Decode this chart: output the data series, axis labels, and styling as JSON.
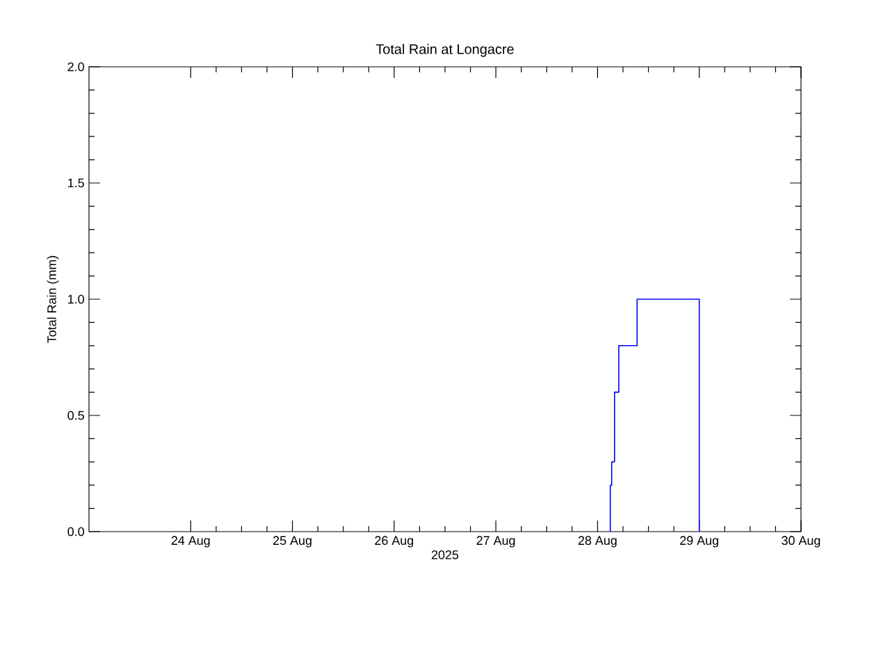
{
  "chart_data": {
    "type": "step",
    "title": "Total Rain at Longacre",
    "xlabel": "2025",
    "ylabel": "Total Rain (mm)",
    "x": [
      "2025-08-28T03:00",
      "2025-08-28T03:00",
      "2025-08-28T03:20",
      "2025-08-28T04:00",
      "2025-08-28T05:00",
      "2025-08-28T09:20",
      "2025-08-29T00:00"
    ],
    "series": [
      {
        "color": "#0000ff",
        "values": [
          0,
          0.2,
          0.3,
          0.6,
          0.8,
          1.0,
          0
        ]
      }
    ],
    "xlim": [
      "2025-08-23",
      "2025-08-30"
    ],
    "xticks": [
      {
        "value": "2025-08-24",
        "label": "24 Aug"
      },
      {
        "value": "2025-08-25",
        "label": "25 Aug"
      },
      {
        "value": "2025-08-26",
        "label": "26 Aug"
      },
      {
        "value": "2025-08-27",
        "label": "27 Aug"
      },
      {
        "value": "2025-08-28",
        "label": "28 Aug"
      },
      {
        "value": "2025-08-29",
        "label": "29 Aug"
      },
      {
        "value": "2025-08-30",
        "label": "30 Aug"
      }
    ],
    "ylim": [
      0,
      2
    ],
    "yticks": [
      {
        "value": 0,
        "label": "0.0"
      },
      {
        "value": 0.5,
        "label": "0.5"
      },
      {
        "value": 1,
        "label": "1.0"
      },
      {
        "value": 1.5,
        "label": "1.5"
      },
      {
        "value": 2,
        "label": "2.0"
      }
    ],
    "grid": false
  }
}
